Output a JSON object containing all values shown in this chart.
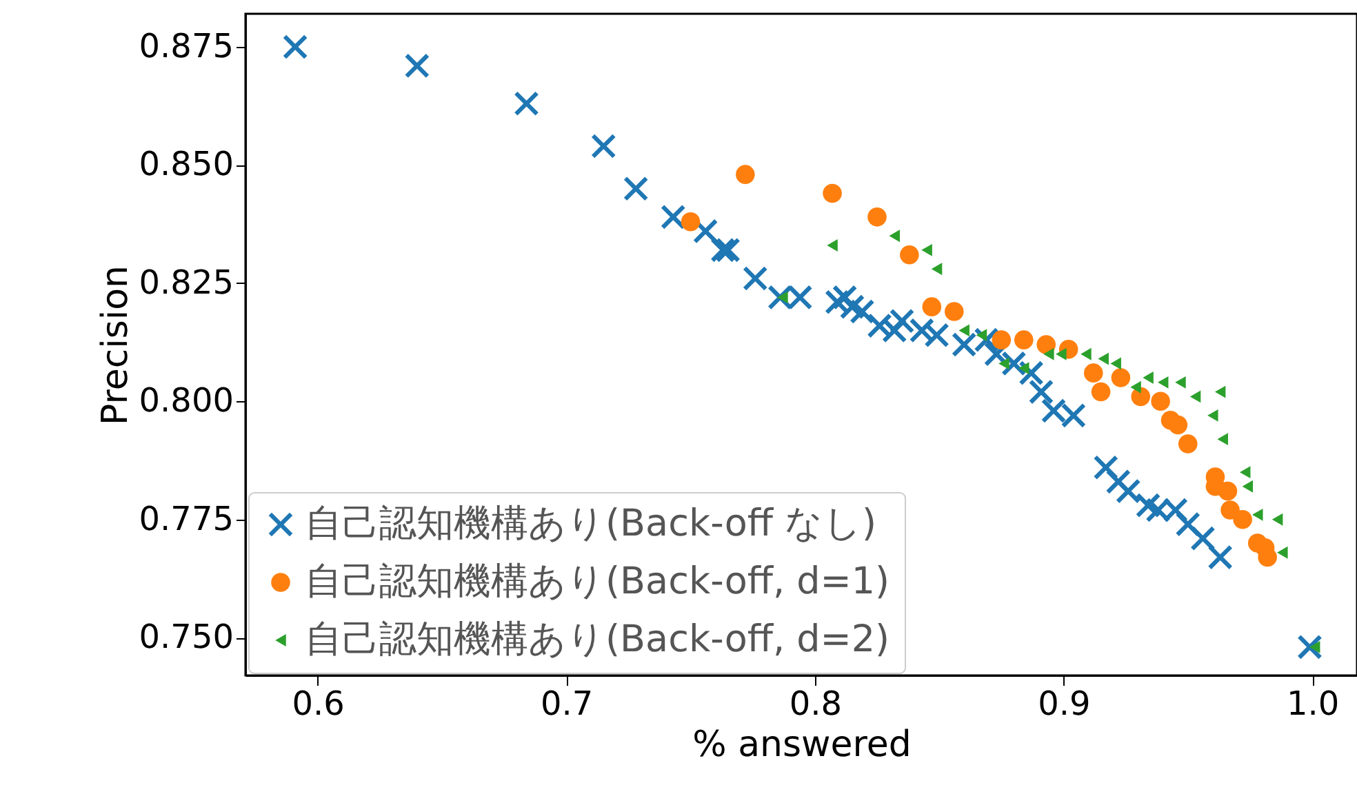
{
  "chart_data": {
    "type": "scatter",
    "xlabel": "% answered",
    "ylabel": "Precision",
    "xlim": [
      0.571,
      1.018
    ],
    "ylim": [
      0.742,
      0.882
    ],
    "xticks": [
      0.6,
      0.7,
      0.8,
      0.9,
      {
        "value": 1.0,
        "label": "1.0"
      }
    ],
    "yticks": [
      {
        "value": 0.75,
        "label": "0.750"
      },
      0.775,
      {
        "value": 0.8,
        "label": "0.800"
      },
      0.825,
      {
        "value": 0.85,
        "label": "0.850"
      },
      0.875
    ],
    "grid": false,
    "legend": "bottom left",
    "series": [
      {
        "name": "自己認知機構あり(Back-off なし)",
        "color": "#1f77b4",
        "marker": "cross",
        "x": [
          0.591,
          0.64,
          0.684,
          0.715,
          0.728,
          0.743,
          0.756,
          0.763,
          0.765,
          0.776,
          0.786,
          0.794,
          0.809,
          0.812,
          0.815,
          0.819,
          0.826,
          0.832,
          0.835,
          0.843,
          0.849,
          0.86,
          0.869,
          0.873,
          0.88,
          0.887,
          0.891,
          0.896,
          0.904,
          0.917,
          0.922,
          0.926,
          0.934,
          0.938,
          0.945,
          0.95,
          0.956,
          0.963,
          0.999
        ],
        "values": [
          0.875,
          0.871,
          0.863,
          0.854,
          0.845,
          0.839,
          0.836,
          0.832,
          0.832,
          0.826,
          0.822,
          0.822,
          0.821,
          0.822,
          0.82,
          0.819,
          0.816,
          0.815,
          0.817,
          0.815,
          0.814,
          0.812,
          0.813,
          0.81,
          0.808,
          0.806,
          0.802,
          0.798,
          0.797,
          0.786,
          0.783,
          0.781,
          0.778,
          0.777,
          0.777,
          0.774,
          0.771,
          0.767,
          0.748
        ]
      },
      {
        "name": "自己認知機構あり(Back-off, d=1)",
        "color": "#ff7f0e",
        "marker": "circle",
        "x": [
          0.75,
          0.772,
          0.807,
          0.825,
          0.838,
          0.847,
          0.856,
          0.875,
          0.884,
          0.893,
          0.902,
          0.912,
          0.915,
          0.923,
          0.931,
          0.939,
          0.943,
          0.946,
          0.95,
          0.961,
          0.961,
          0.966,
          0.967,
          0.972,
          0.978,
          0.981,
          0.982
        ],
        "values": [
          0.838,
          0.848,
          0.844,
          0.839,
          0.831,
          0.82,
          0.819,
          0.813,
          0.813,
          0.812,
          0.811,
          0.806,
          0.802,
          0.805,
          0.801,
          0.8,
          0.796,
          0.795,
          0.791,
          0.784,
          0.782,
          0.781,
          0.777,
          0.775,
          0.77,
          0.769,
          0.767
        ]
      },
      {
        "name": "自己認知機構あり(Back-off, d=2)",
        "color": "#2ca02c",
        "marker": "triangle",
        "x": [
          0.787,
          0.807,
          0.832,
          0.845,
          0.849,
          0.86,
          0.867,
          0.876,
          0.884,
          0.894,
          0.899,
          0.909,
          0.916,
          0.921,
          0.929,
          0.934,
          0.94,
          0.947,
          0.953,
          0.96,
          0.963,
          0.964,
          0.973,
          0.974,
          0.978,
          0.986,
          0.988,
          1.001
        ],
        "values": [
          0.822,
          0.833,
          0.835,
          0.832,
          0.828,
          0.815,
          0.814,
          0.808,
          0.807,
          0.81,
          0.81,
          0.81,
          0.809,
          0.808,
          0.803,
          0.805,
          0.804,
          0.804,
          0.801,
          0.797,
          0.802,
          0.792,
          0.785,
          0.782,
          0.776,
          0.775,
          0.768,
          0.748
        ]
      }
    ]
  }
}
